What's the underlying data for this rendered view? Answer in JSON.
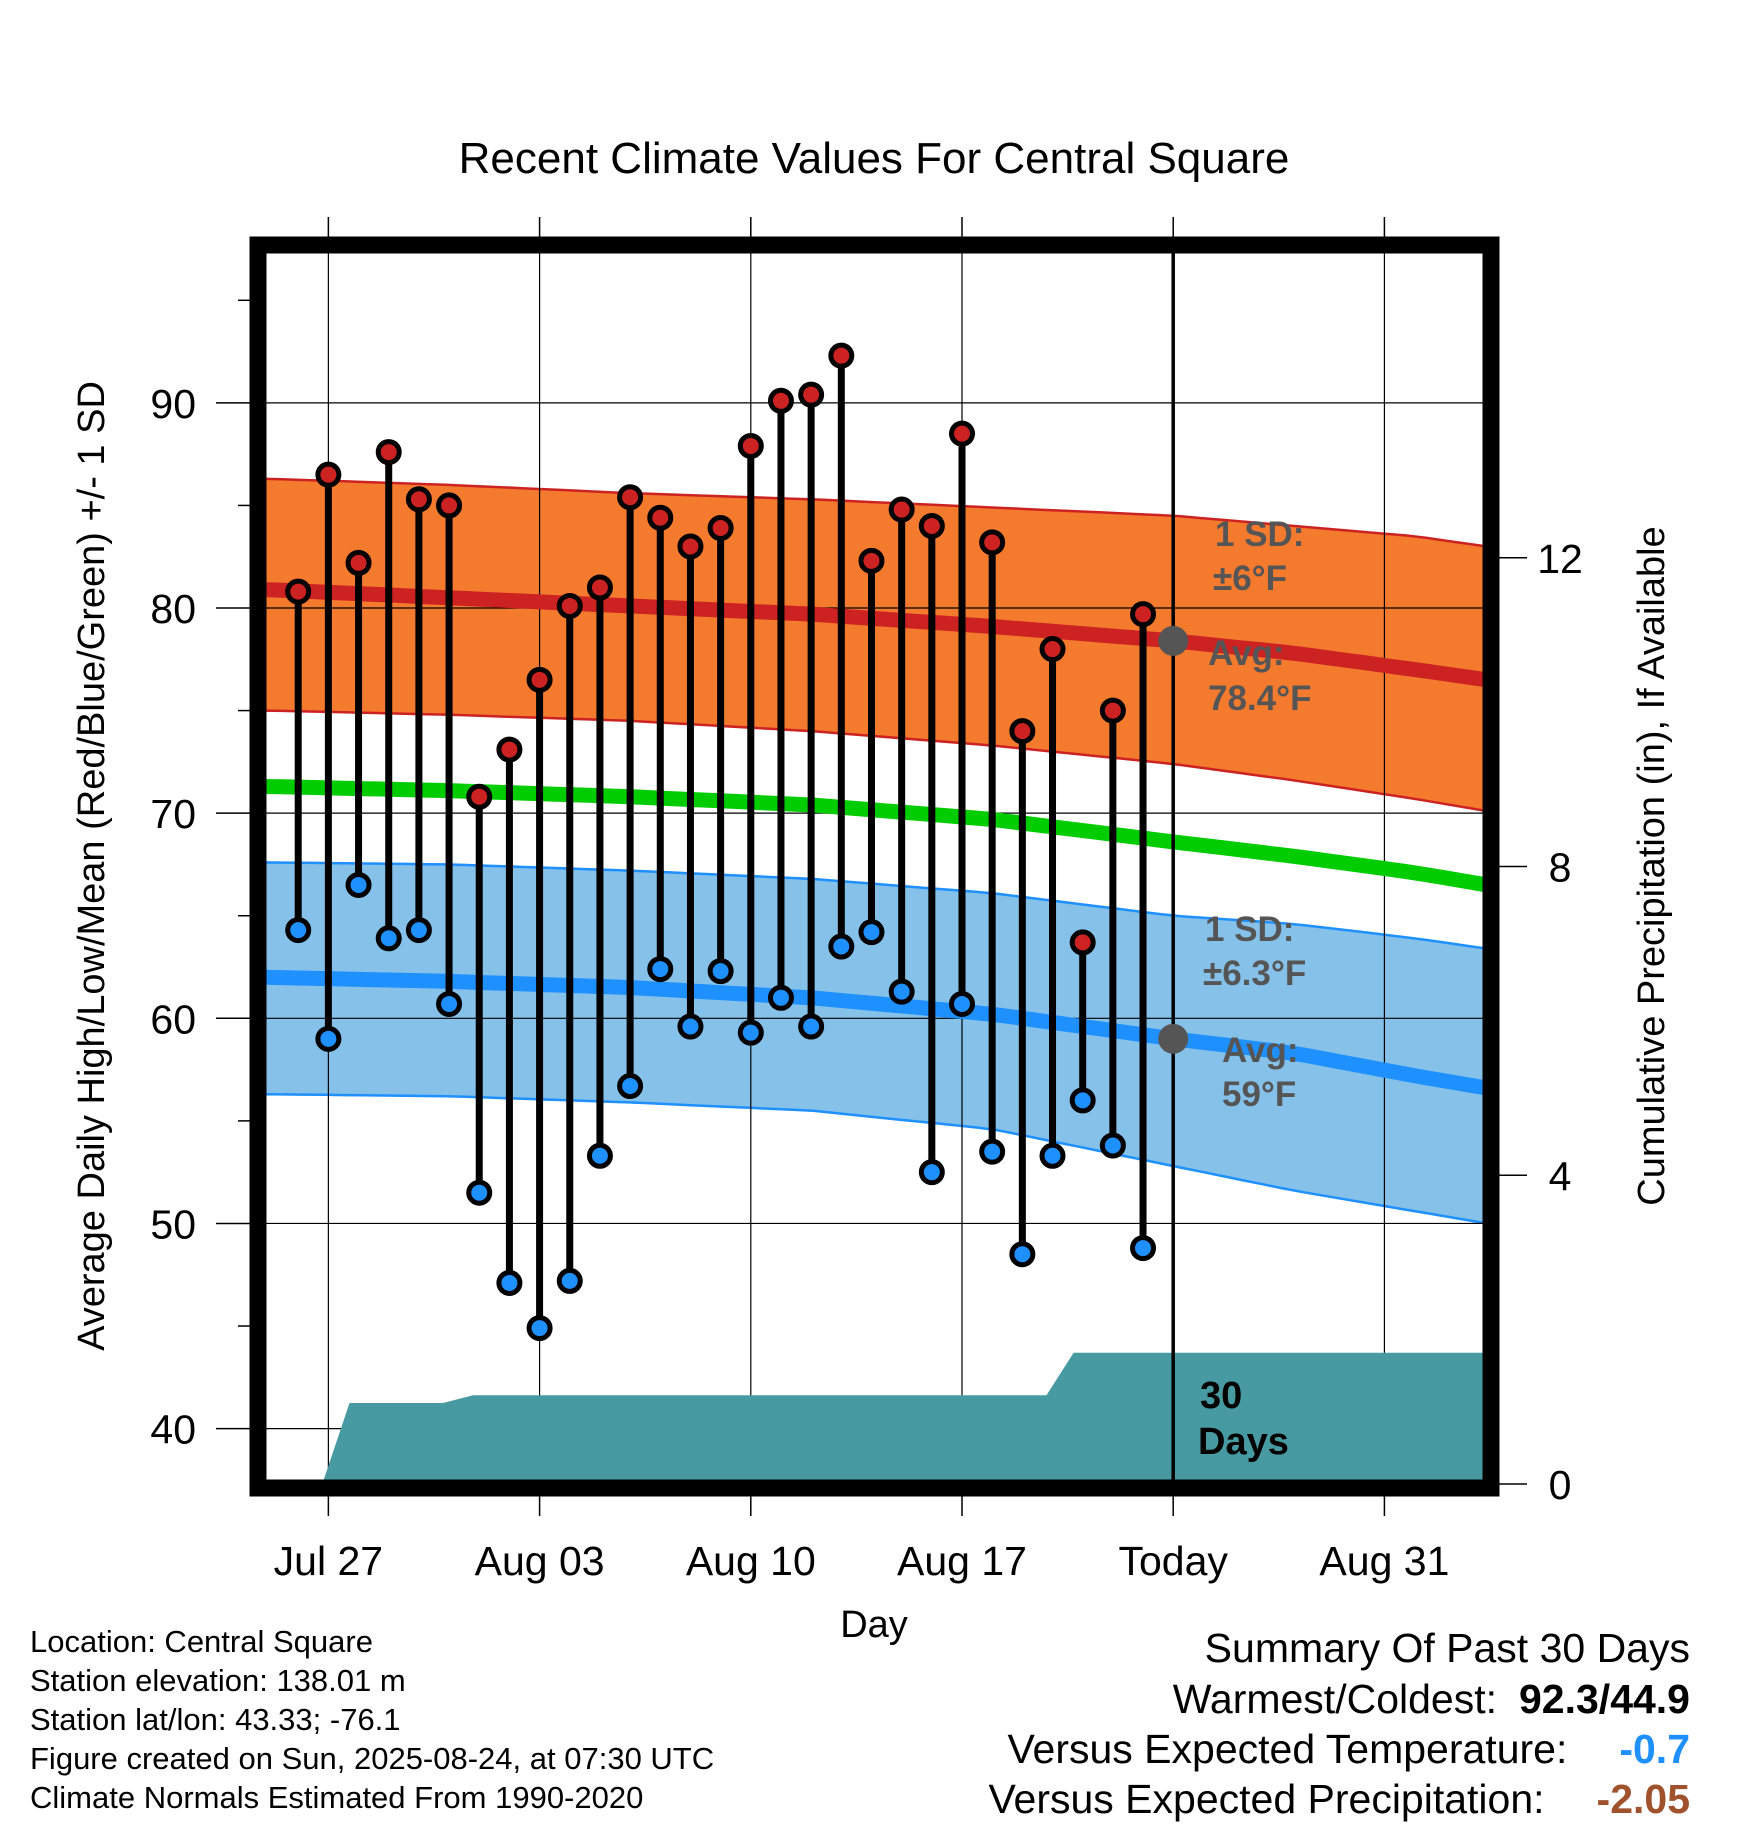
{
  "chart_data": {
    "type": "line",
    "title": "Recent Climate Values For Central Square",
    "xlabel": "Day",
    "ylabel": "Average Daily High/Low/Mean (Red/Blue/Green) +/- 1 SD",
    "y2label": "Cumulative Precipitation (in), If Available",
    "x_ticks": [
      "Jul 27",
      "Aug 03",
      "Aug 10",
      "Aug 17",
      "Today",
      "Aug 31"
    ],
    "x_tick_days": [
      2,
      9,
      16,
      23,
      30,
      37
    ],
    "xlim": [
      -0.2,
      40.4
    ],
    "ylim": [
      37.3,
      97.5
    ],
    "y_ticks": [
      40,
      50,
      60,
      70,
      80,
      90
    ],
    "y2lim": [
      0,
      16
    ],
    "y2_ticks": [
      0,
      4,
      8,
      12
    ],
    "grid": true,
    "days": [
      1,
      2,
      3,
      4,
      5,
      6,
      7,
      8,
      9,
      10,
      11,
      12,
      13,
      14,
      15,
      16,
      17,
      18,
      19,
      20,
      21,
      22,
      23,
      24,
      25,
      26,
      27,
      28,
      29
    ],
    "series": [
      {
        "name": "Daily High",
        "color": "#cc2222",
        "values": [
          80.8,
          86.5,
          82.2,
          87.6,
          85.3,
          85.0,
          70.8,
          73.1,
          76.5,
          80.1,
          81.0,
          85.4,
          84.4,
          83.0,
          83.9,
          87.9,
          90.1,
          90.4,
          92.3,
          82.3,
          84.8,
          84.0,
          88.5,
          83.2,
          74.0,
          78.0,
          63.7,
          75.0,
          79.7
        ]
      },
      {
        "name": "Daily Low",
        "color": "#1e90ff",
        "values": [
          64.3,
          59.0,
          66.5,
          63.9,
          64.3,
          60.7,
          51.5,
          47.1,
          44.9,
          47.2,
          53.3,
          56.7,
          62.4,
          59.6,
          62.3,
          59.3,
          61.0,
          59.6,
          63.5,
          64.2,
          61.3,
          52.5,
          60.7,
          53.5,
          48.5,
          53.3,
          56.0,
          53.8,
          48.8
        ]
      },
      {
        "name": "Normal High",
        "color": "#cc2222",
        "x": [
          0,
          6,
          12,
          18,
          24,
          30,
          34,
          38,
          40.4
        ],
        "values": [
          80.9,
          80.5,
          80.1,
          79.7,
          79.1,
          78.4,
          77.8,
          77.0,
          76.5
        ]
      },
      {
        "name": "Normal Low",
        "color": "#1e90ff",
        "x": [
          0,
          6,
          12,
          18,
          24,
          30,
          34,
          38,
          40.4
        ],
        "values": [
          62.0,
          61.8,
          61.5,
          61.0,
          60.2,
          59.0,
          58.3,
          57.2,
          56.6
        ]
      },
      {
        "name": "Normal Mean",
        "color": "#00cc00",
        "x": [
          0,
          6,
          12,
          18,
          24,
          30,
          34,
          38,
          40.4
        ],
        "values": [
          71.3,
          71.1,
          70.8,
          70.4,
          69.7,
          68.6,
          67.9,
          67.1,
          66.5
        ]
      },
      {
        "name": "Cumulative Precipitation",
        "axis": "y2",
        "color": "#479aa2",
        "x": [
          0,
          1.8,
          2.7,
          5.8,
          6.8,
          25.8,
          26.7,
          40.4
        ],
        "values": [
          0,
          0,
          1.05,
          1.05,
          1.15,
          1.15,
          1.7,
          1.7
        ]
      }
    ],
    "bands": [
      {
        "name": "High +/- 1 SD",
        "color": "#f47a2e",
        "edge_color": "#cc2222",
        "x": [
          0,
          6,
          12,
          18,
          24,
          30,
          34,
          38,
          40.4
        ],
        "upper": [
          86.3,
          86.0,
          85.6,
          85.3,
          84.9,
          84.5,
          84.0,
          83.5,
          83.0
        ],
        "lower": [
          75.0,
          74.8,
          74.5,
          74.0,
          73.3,
          72.4,
          71.6,
          70.7,
          70.1
        ]
      },
      {
        "name": "Low +/- 1 SD",
        "color": "#85c1e9",
        "edge_color": "#1e90ff",
        "x": [
          0,
          6,
          12,
          18,
          24,
          30,
          34,
          38,
          40.4
        ],
        "upper": [
          67.6,
          67.5,
          67.2,
          66.8,
          66.1,
          65.0,
          64.6,
          63.9,
          63.4
        ],
        "lower": [
          56.3,
          56.2,
          55.9,
          55.5,
          54.6,
          52.8,
          51.6,
          50.6,
          50.0
        ]
      }
    ],
    "markers": [
      {
        "label_top": "Avg:",
        "label_bottom": "78.4°F",
        "x": 30,
        "y": 78.4,
        "color": "#555555"
      },
      {
        "label_top": "Avg:",
        "label_bottom": "59°F",
        "x": 30,
        "y": 59.0,
        "color": "#555555"
      }
    ],
    "annotations": [
      {
        "line1": "1 SD:",
        "line2": "±6°F",
        "color": "#555555"
      },
      {
        "line1": "1 SD:",
        "line2": "±6.3°F",
        "color": "#555555"
      },
      {
        "line1": "30",
        "line2": "Days",
        "color": "#000000"
      }
    ],
    "today_day": 30
  },
  "metadata": {
    "location": "Location: Central Square",
    "elevation": "Station elevation: 138.01 m",
    "latlon": "Station lat/lon: 43.33; -76.1",
    "created": "Figure created on Sun, 2025-08-24, at 07:30 UTC",
    "normals": "Climate Normals Estimated From 1990-2020"
  },
  "summary": {
    "title": "Summary Of Past 30 Days",
    "warm_cold_label": "Warmest/Coldest:",
    "warm_cold_value": "92.3/44.9",
    "temp_label": "Versus Expected Temperature:",
    "temp_value": "-0.7",
    "temp_color": "#1e90ff",
    "precip_label": "Versus Expected Precipitation:",
    "precip_value": "-2.05",
    "precip_color": "#a0522d"
  }
}
